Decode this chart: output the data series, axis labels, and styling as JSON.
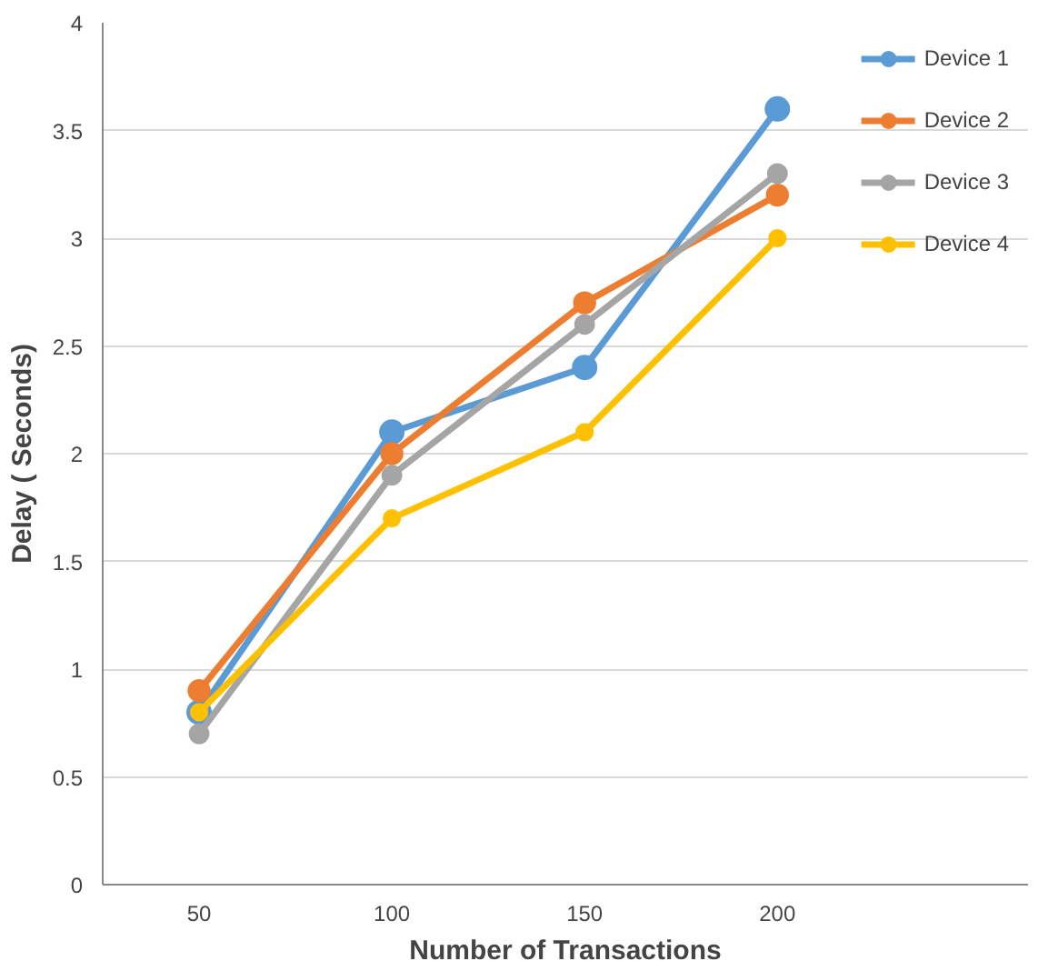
{
  "chart_data": {
    "type": "line",
    "xlabel": "Number of Transactions",
    "ylabel": "Delay ( Seconds)",
    "categories": [
      "50",
      "100",
      "150",
      "200"
    ],
    "ylim": [
      0,
      4
    ],
    "yticks": [
      0,
      0.5,
      1,
      1.5,
      2,
      2.5,
      3,
      3.5,
      4
    ],
    "grid": "y",
    "legend": "top right",
    "marker": "circle",
    "line_style": "solid",
    "series": [
      {
        "name": "Device 1",
        "color": "#5b9bd5",
        "values": [
          0.8,
          2.1,
          2.4,
          3.6
        ]
      },
      {
        "name": "Device 2",
        "color": "#ed7d31",
        "values": [
          0.9,
          2.0,
          2.7,
          3.2
        ]
      },
      {
        "name": "Device 3",
        "color": "#a5a5a5",
        "values": [
          0.7,
          1.9,
          2.6,
          3.3
        ]
      },
      {
        "name": "Device 4",
        "color": "#ffc000",
        "values": [
          0.8,
          1.7,
          2.1,
          3.0
        ]
      }
    ]
  }
}
